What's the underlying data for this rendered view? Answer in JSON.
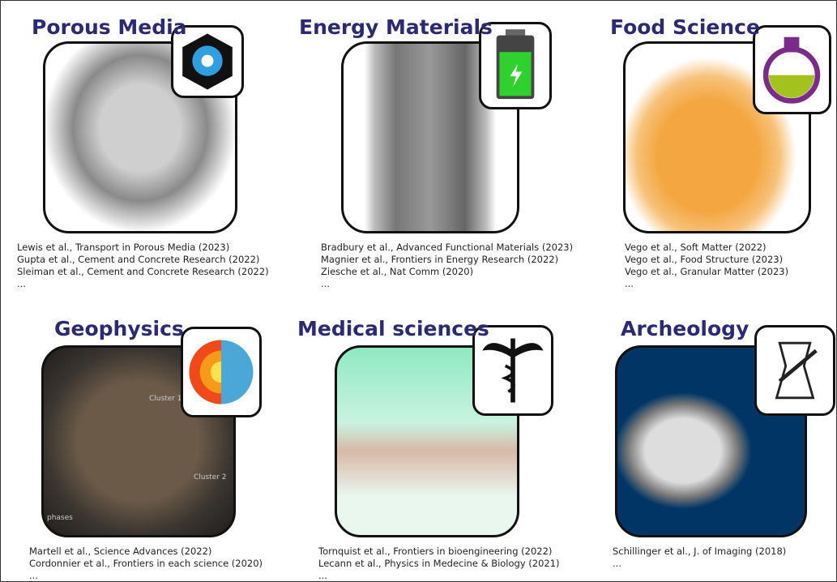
{
  "panels": [
    {
      "title": "Porous Media",
      "refs": [
        "Lewis et al., Transport in Porous Media (2023)",
        "Gupta et al., Cement and Concrete Research (2022)",
        "Sleiman et al., Cement and Concrete Research (2022)",
        "..."
      ]
    },
    {
      "title": "Energy Materials",
      "refs": [
        "Bradbury et al., Advanced Functional Materials (2023)",
        "Magnier et al., Frontiers in Energy Research (2022)",
        "Ziesche et al., Nat Comm (2020)",
        "..."
      ]
    },
    {
      "title": "Food Science",
      "refs": [
        "Vego et al., Soft Matter (2022)",
        "Vego et al., Food Structure (2023)",
        "Vego et al., Granular Matter (2023)",
        "..."
      ]
    },
    {
      "title": "Geophysics",
      "refs": [
        "Martell et al., Science Advances (2022)",
        "Cordonnier et al., Frontiers in each science (2020)",
        "..."
      ],
      "image_labels": [
        "Cluster 1",
        "Cluster 2",
        "phases"
      ]
    },
    {
      "title": "Medical sciences",
      "refs": [
        "Tornquist et al., Frontiers in bioengineering (2022)",
        "Lecann et al., Physics in Medecine & Biology (2021)",
        "..."
      ]
    },
    {
      "title": "Archeology",
      "refs": [
        "Schillinger et al., J. of Imaging (2018)",
        "..."
      ]
    }
  ]
}
